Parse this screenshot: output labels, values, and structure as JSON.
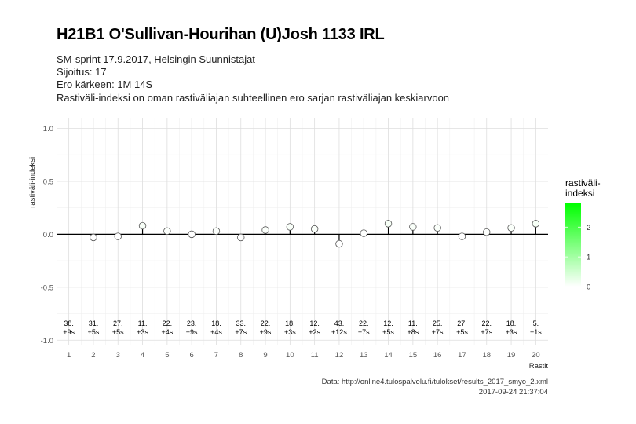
{
  "title": "H21B1 O'Sullivan-Hourihan (U)Josh 1133 IRL",
  "subtitle_lines": [
    "SM-sprint 17.9.2017, Helsingin Suunnistajat",
    "Sijoitus: 17",
    "Ero kärkeen: 1M 14S",
    "Rastiväli-indeksi on oman rastiväliajan suhteellinen ero sarjan rastiväliajan keskiarvoon"
  ],
  "caption_lines": [
    "Data: http://online4.tulospalvelu.fi/tulokset/results_2017_smyo_2.xml",
    "2017-09-24 21:37:04"
  ],
  "legend": {
    "title_line1": "rastiväli-",
    "title_line2": "indeksi",
    "ticks": [
      "2",
      "1",
      "0"
    ],
    "tick_values": [
      2,
      1,
      0
    ],
    "min": 0,
    "max": 2.8,
    "color_high": "#00ff00",
    "color_low": "#ffffff"
  },
  "chart_data": {
    "type": "scatter",
    "xlabel": "Rastit",
    "ylabel": "rastiväli-indeksi",
    "ylim": [
      -1.05,
      1.1
    ],
    "xlim": [
      0.5,
      20.5
    ],
    "yticks": [
      1.0,
      0.5,
      0.0,
      -0.5,
      -1.0
    ],
    "ytick_labels": [
      "1.0",
      "0.5",
      "0.0",
      "-0.5",
      "-1.0"
    ],
    "categories": [
      1,
      2,
      3,
      4,
      5,
      6,
      7,
      8,
      9,
      10,
      11,
      12,
      13,
      14,
      15,
      16,
      17,
      18,
      19,
      20
    ],
    "x_tick_labels": [
      "1",
      "2",
      "3",
      "4",
      "5",
      "6",
      "7",
      "8",
      "9",
      "10",
      "11",
      "12",
      "13",
      "14",
      "15",
      "16",
      "17",
      "18",
      "19",
      "20"
    ],
    "values": [
      null,
      -0.03,
      -0.02,
      0.08,
      0.03,
      0.0,
      0.03,
      -0.03,
      0.04,
      0.07,
      0.05,
      -0.09,
      0.01,
      0.1,
      0.07,
      0.06,
      -0.02,
      0.02,
      0.06,
      0.1
    ],
    "rank_labels": [
      "38.",
      "31.",
      "27.",
      "11.",
      "22.",
      "23.",
      "18.",
      "33.",
      "22.",
      "18.",
      "12.",
      "43.",
      "22.",
      "12.",
      "11.",
      "25.",
      "27.",
      "22.",
      "18.",
      "5."
    ],
    "diff_labels": [
      "+9s",
      "+5s",
      "+5s",
      "+3s",
      "+4s",
      "+9s",
      "+4s",
      "+7s",
      "+9s",
      "+3s",
      "+2s",
      "+12s",
      "+7s",
      "+5s",
      "+8s",
      "+7s",
      "+5s",
      "+7s",
      "+3s",
      "+1s"
    ],
    "grid": true,
    "legend_position": "right",
    "reference_line_y": 0
  }
}
